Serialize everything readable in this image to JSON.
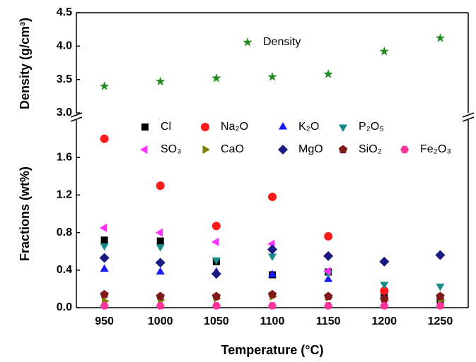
{
  "chart_data": [
    {
      "type": "scatter",
      "y_label": "Density (g/cm³)",
      "x": [
        950,
        1000,
        1050,
        1100,
        1150,
        1200,
        1250
      ],
      "xlim": [
        925,
        1275
      ],
      "ylim": [
        3.0,
        4.5
      ],
      "yticks": [
        {
          "value": 3.0,
          "label": "3.0"
        },
        3.5,
        {
          "value": 4.0,
          "label": "4.0"
        },
        4.5
      ],
      "series": [
        {
          "name": "Density",
          "color": "#228b22",
          "marker": "star",
          "values": [
            3.4,
            3.47,
            3.52,
            3.54,
            3.58,
            3.92,
            4.12
          ]
        }
      ]
    },
    {
      "type": "scatter",
      "y_label": "Fractions (wt%)",
      "x_label": "Temperature (°C)",
      "x": [
        950,
        1000,
        1050,
        1100,
        1150,
        1200,
        1250
      ],
      "xlim": [
        925,
        1275
      ],
      "xticks": [
        950,
        1000,
        1050,
        1100,
        1150,
        1200,
        1250
      ],
      "ylim": [
        0,
        2.0
      ],
      "yticks": [
        {
          "value": 0,
          "label": "0.0"
        },
        0.4,
        0.8,
        1.2,
        1.6
      ],
      "series": [
        {
          "name": "Cl",
          "color": "#000000",
          "marker": "square",
          "values": [
            0.72,
            0.71,
            0.49,
            0.35,
            0.38,
            0.12,
            0.08
          ]
        },
        {
          "name": "Na₂O",
          "color": "#ff1a1a",
          "marker": "circle",
          "values": [
            1.8,
            1.3,
            0.87,
            1.18,
            0.76,
            0.18,
            null
          ]
        },
        {
          "name": "K₂O",
          "color": "#1a1aff",
          "marker": "triangle-up",
          "values": [
            0.41,
            0.38,
            0.38,
            0.35,
            0.3,
            null,
            null
          ]
        },
        {
          "name": "P₂O₅",
          "color": "#1a8a8a",
          "marker": "triangle-down",
          "values": [
            0.66,
            0.65,
            0.51,
            0.55,
            0.37,
            0.25,
            0.23
          ]
        },
        {
          "name": "SO₃",
          "color": "#ff33ff",
          "marker": "triangle-left",
          "values": [
            0.85,
            0.8,
            0.7,
            0.68,
            0.39,
            null,
            null
          ]
        },
        {
          "name": "CaO",
          "color": "#808000",
          "marker": "triangle-right",
          "values": [
            0.07,
            0.08,
            0.1,
            0.12,
            0.11,
            0.08,
            0.08
          ]
        },
        {
          "name": "MgO",
          "color": "#1a1a80",
          "marker": "diamond",
          "values": [
            0.53,
            0.48,
            0.36,
            0.62,
            0.55,
            0.49,
            0.56
          ]
        },
        {
          "name": "SiO₂",
          "color": "#801a1a",
          "marker": "pentagon",
          "values": [
            0.14,
            0.12,
            0.12,
            0.14,
            0.12,
            0.09,
            0.12
          ]
        },
        {
          "name": "Fe₂O₃",
          "color": "#ff3399",
          "marker": "hexagon",
          "values": [
            0.02,
            0.02,
            0.02,
            0.02,
            0.02,
            0.02,
            0.02
          ]
        }
      ]
    }
  ]
}
